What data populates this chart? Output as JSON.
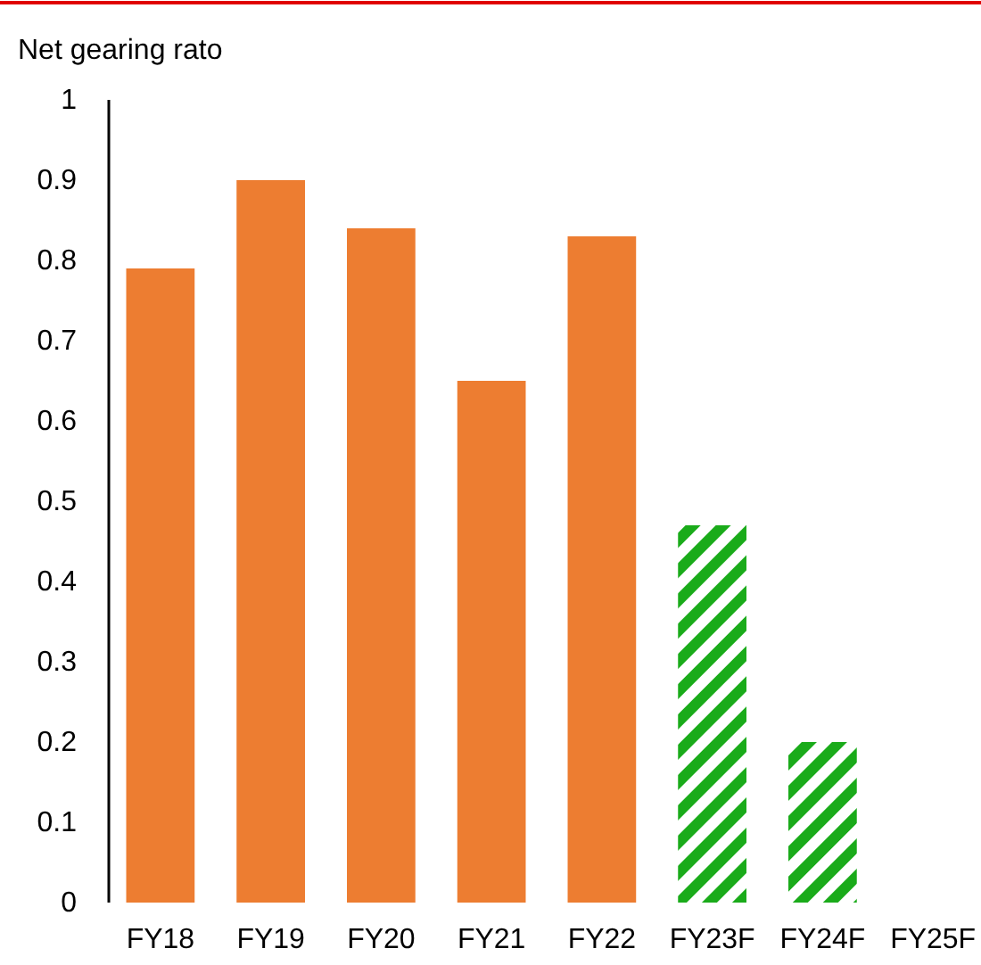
{
  "chart_data": {
    "type": "bar",
    "title": "Net gearing rato",
    "categories": [
      "FY18",
      "FY19",
      "FY20",
      "FY21",
      "FY22",
      "FY23F",
      "FY24F",
      "FY25F"
    ],
    "series": [
      {
        "color": "#ed7d31",
        "values": [
          0.79,
          0.9,
          0.84,
          0.65,
          0.83,
          null,
          null,
          null
        ]
      },
      {
        "color": "#1aab1a",
        "values": [
          null,
          null,
          null,
          null,
          null,
          0.47,
          0.2,
          0
        ]
      }
    ],
    "ylim": [
      0,
      1
    ],
    "yticks": [
      0,
      0.1,
      0.2,
      0.3,
      0.4,
      0.5,
      0.6,
      0.7,
      0.8,
      0.9,
      1
    ],
    "grid": false
  }
}
